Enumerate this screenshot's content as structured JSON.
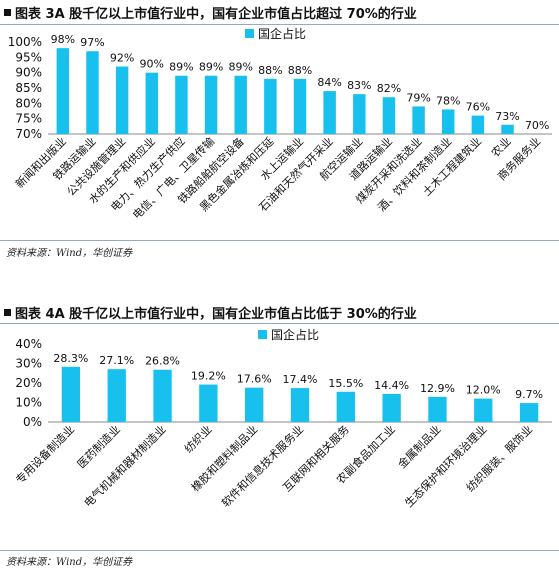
{
  "figures": [
    {
      "title": "图表 3A 股千亿以上市值行业中，国有企业市值占比超过 70%的行业",
      "source": "资料来源：Wind，华创证券",
      "bar_color": "#18c0ee"
    },
    {
      "title": "图表 4A 股千亿以上市值行业中，国有企业市值占比低于 30%的行业",
      "source": "资料来源：Wind，华创证券",
      "bar_color": "#18c0ee"
    }
  ],
  "chart_data": [
    {
      "type": "bar",
      "title": "",
      "legend": "国企占比",
      "legend_position": "top-center",
      "categories": [
        "新闻和出版业",
        "铁路运输业",
        "公共设施管理业",
        "水的生产和供应业",
        "电力、热力生产供应",
        "电信、广电、卫星传输",
        "铁路船舶航空设备",
        "黑色金属冶炼和压延",
        "水上运输业",
        "石油和天然气开采业",
        "航空运输业",
        "道路运输业",
        "煤炭开采和洗选业",
        "酒、饮料和茶制造业",
        "土木工程建筑业",
        "农业",
        "商务服务业"
      ],
      "values": [
        98,
        97,
        92,
        90,
        89,
        89,
        89,
        88,
        88,
        84,
        83,
        82,
        79,
        78,
        76,
        73,
        70
      ],
      "data_labels": [
        "98%",
        "97%",
        "92%",
        "90%",
        "89%",
        "89%",
        "89%",
        "88%",
        "88%",
        "84%",
        "83%",
        "82%",
        "79%",
        "78%",
        "76%",
        "73%",
        "70%"
      ],
      "ylim": [
        70,
        100
      ],
      "yticks": [
        "70%",
        "75%",
        "80%",
        "85%",
        "90%",
        "95%",
        "100%"
      ],
      "grid": false
    },
    {
      "type": "bar",
      "title": "",
      "legend": "国企占比",
      "legend_position": "top-center",
      "categories": [
        "专用设备制造业",
        "医药制造业",
        "电气机械和器材制造业",
        "纺织业",
        "橡胶和塑料制品业",
        "软件和信息技术服务业",
        "互联网和相关服务",
        "农副食品加工业",
        "金属制品业",
        "生态保护和环境治理业",
        "纺织服装、服饰业"
      ],
      "values": [
        28.3,
        27.1,
        26.8,
        19.2,
        17.6,
        17.4,
        15.5,
        14.4,
        12.9,
        12.0,
        9.7
      ],
      "data_labels": [
        "28.3%",
        "27.1%",
        "26.8%",
        "19.2%",
        "17.6%",
        "17.4%",
        "15.5%",
        "14.4%",
        "12.9%",
        "12.0%",
        "9.7%"
      ],
      "ylim": [
        0,
        40
      ],
      "yticks": [
        "0%",
        "10%",
        "20%",
        "30%",
        "40%"
      ],
      "grid": false
    }
  ]
}
